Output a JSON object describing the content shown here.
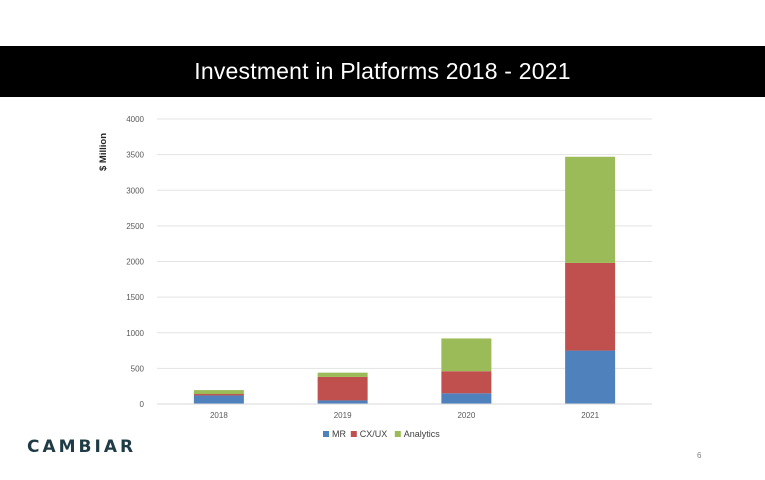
{
  "slide": {
    "title": "Investment in Platforms 2018 - 2021",
    "logo_text": "CAMBIAR",
    "page_number": "6"
  },
  "chart_data": {
    "type": "bar",
    "stacked": true,
    "ylabel": "$ Million",
    "ylim": [
      0,
      4000
    ],
    "yticks": [
      0,
      500,
      1000,
      1500,
      2000,
      2500,
      3000,
      3500,
      4000
    ],
    "categories": [
      "2018",
      "2019",
      "2020",
      "2021"
    ],
    "grid": true,
    "legend_position": "bottom",
    "series": [
      {
        "name": "MR",
        "color": "#4f81bd",
        "values": [
          120,
          50,
          150,
          750
        ]
      },
      {
        "name": "CX/UX",
        "color": "#c0504d",
        "values": [
          20,
          330,
          310,
          1230
        ]
      },
      {
        "name": "Analytics",
        "color": "#9bbb59",
        "values": [
          55,
          60,
          460,
          1490
        ]
      }
    ]
  }
}
